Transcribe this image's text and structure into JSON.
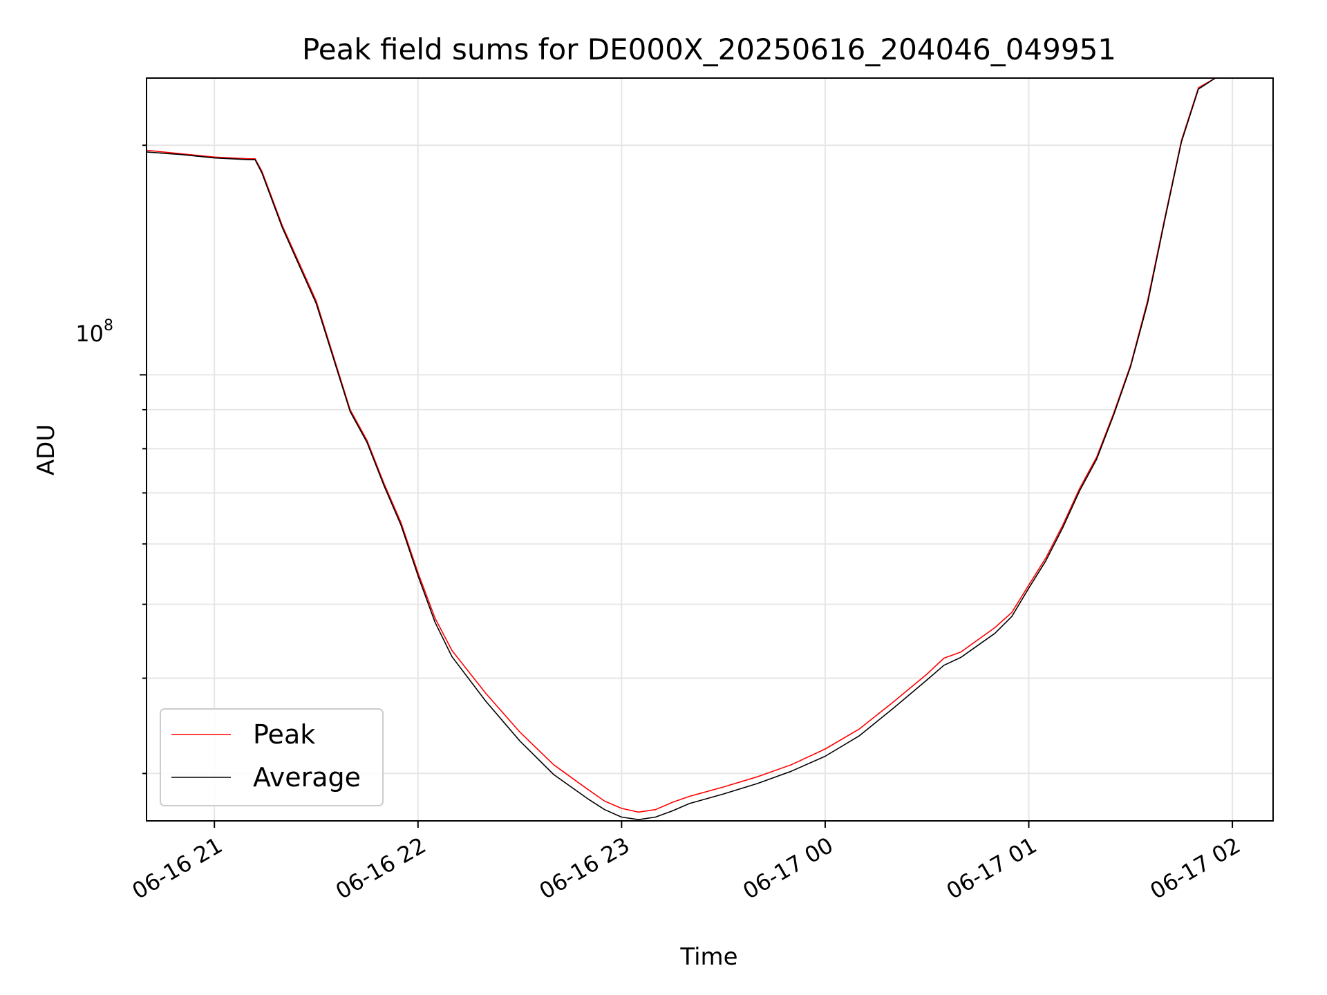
{
  "chart_data": {
    "type": "line",
    "title": "Peak field sums for DE000X_20250616_204046_049951",
    "xlabel": "Time",
    "ylabel": "ADU",
    "yscale": "log",
    "grid": true,
    "legend_position": "lower-left",
    "x_tick_labels": [
      "06-16 21",
      "06-16 22",
      "06-16 23",
      "06-17 00",
      "06-17 01",
      "06-17 02"
    ],
    "y_major_tick_label": "10^8",
    "y_major_tick_base": "10",
    "y_major_tick_exp": "8",
    "xlim": [
      "2025-06-16 20:40",
      "2025-06-17 02:12"
    ],
    "ylim": [
      26000000,
      245000000
    ],
    "series": [
      {
        "name": "Peak",
        "color": "#ff0000",
        "points": [
          [
            "2025-06-16 20:40",
            197000000
          ],
          [
            "2025-06-16 20:50",
            195000000
          ],
          [
            "2025-06-16 21:00",
            193000000
          ],
          [
            "2025-06-16 21:10",
            192000000
          ],
          [
            "2025-06-16 21:12",
            192000000
          ],
          [
            "2025-06-16 21:14",
            185000000
          ],
          [
            "2025-06-16 21:20",
            157000000
          ],
          [
            "2025-06-16 21:30",
            125000000
          ],
          [
            "2025-06-16 21:40",
            90000000
          ],
          [
            "2025-06-16 21:45",
            82000000
          ],
          [
            "2025-06-16 21:50",
            72000000
          ],
          [
            "2025-06-16 21:55",
            64000000
          ],
          [
            "2025-06-16 22:00",
            55000000
          ],
          [
            "2025-06-16 22:05",
            48000000
          ],
          [
            "2025-06-16 22:10",
            43500000
          ],
          [
            "2025-06-16 22:20",
            38200000
          ],
          [
            "2025-06-16 22:30",
            34000000
          ],
          [
            "2025-06-16 22:40",
            30800000
          ],
          [
            "2025-06-16 22:50",
            28600000
          ],
          [
            "2025-06-16 22:55",
            27600000
          ],
          [
            "2025-06-16 23:00",
            27000000
          ],
          [
            "2025-06-16 23:05",
            26700000
          ],
          [
            "2025-06-16 23:10",
            26900000
          ],
          [
            "2025-06-16 23:15",
            27500000
          ],
          [
            "2025-06-16 23:20",
            28000000
          ],
          [
            "2025-06-16 23:30",
            28800000
          ],
          [
            "2025-06-16 23:40",
            29700000
          ],
          [
            "2025-06-16 23:50",
            30800000
          ],
          [
            "2025-06-17 00:00",
            32300000
          ],
          [
            "2025-06-17 00:10",
            34300000
          ],
          [
            "2025-06-17 00:20",
            37200000
          ],
          [
            "2025-06-17 00:30",
            40500000
          ],
          [
            "2025-06-17 00:35",
            42500000
          ],
          [
            "2025-06-17 00:40",
            43300000
          ],
          [
            "2025-06-17 00:50",
            46600000
          ],
          [
            "2025-06-17 00:55",
            48800000
          ],
          [
            "2025-06-17 01:00",
            53000000
          ],
          [
            "2025-06-17 01:05",
            57500000
          ],
          [
            "2025-06-17 01:10",
            63500000
          ],
          [
            "2025-06-17 01:15",
            71000000
          ],
          [
            "2025-06-17 01:20",
            78000000
          ],
          [
            "2025-06-17 01:25",
            89000000
          ],
          [
            "2025-06-17 01:30",
            103000000
          ],
          [
            "2025-06-17 01:35",
            125000000
          ],
          [
            "2025-06-17 01:40",
            160000000
          ],
          [
            "2025-06-17 01:45",
            203000000
          ],
          [
            "2025-06-17 01:50",
            238000000
          ],
          [
            "2025-06-17 01:55",
            245000000
          ],
          [
            "2025-06-17 02:09",
            245000000
          ]
        ]
      },
      {
        "name": "Average",
        "color": "#000000",
        "points": [
          [
            "2025-06-16 20:40",
            196000000
          ],
          [
            "2025-06-16 20:50",
            194500000
          ],
          [
            "2025-06-16 21:00",
            192500000
          ],
          [
            "2025-06-16 21:10",
            191500000
          ],
          [
            "2025-06-16 21:12",
            191500000
          ],
          [
            "2025-06-16 21:14",
            184000000
          ],
          [
            "2025-06-16 21:20",
            156000000
          ],
          [
            "2025-06-16 21:30",
            124000000
          ],
          [
            "2025-06-16 21:40",
            89500000
          ],
          [
            "2025-06-16 21:45",
            81500000
          ],
          [
            "2025-06-16 21:50",
            71500000
          ],
          [
            "2025-06-16 21:55",
            63500000
          ],
          [
            "2025-06-16 22:00",
            54500000
          ],
          [
            "2025-06-16 22:05",
            47400000
          ],
          [
            "2025-06-16 22:10",
            42700000
          ],
          [
            "2025-06-16 22:20",
            37300000
          ],
          [
            "2025-06-16 22:30",
            33100000
          ],
          [
            "2025-06-16 22:40",
            29900000
          ],
          [
            "2025-06-16 22:50",
            27800000
          ],
          [
            "2025-06-16 22:55",
            26900000
          ],
          [
            "2025-06-16 23:00",
            26300000
          ],
          [
            "2025-06-16 23:05",
            26100000
          ],
          [
            "2025-06-16 23:10",
            26300000
          ],
          [
            "2025-06-16 23:15",
            26800000
          ],
          [
            "2025-06-16 23:20",
            27400000
          ],
          [
            "2025-06-16 23:30",
            28200000
          ],
          [
            "2025-06-16 23:40",
            29100000
          ],
          [
            "2025-06-16 23:50",
            30200000
          ],
          [
            "2025-06-17 00:00",
            31600000
          ],
          [
            "2025-06-17 00:10",
            33600000
          ],
          [
            "2025-06-17 00:20",
            36500000
          ],
          [
            "2025-06-17 00:30",
            39800000
          ],
          [
            "2025-06-17 00:35",
            41600000
          ],
          [
            "2025-06-17 00:40",
            42600000
          ],
          [
            "2025-06-17 00:50",
            45800000
          ],
          [
            "2025-06-17 00:55",
            48200000
          ],
          [
            "2025-06-17 01:00",
            52500000
          ],
          [
            "2025-06-17 01:05",
            57000000
          ],
          [
            "2025-06-17 01:10",
            63000000
          ],
          [
            "2025-06-17 01:15",
            70500000
          ],
          [
            "2025-06-17 01:20",
            77500000
          ],
          [
            "2025-06-17 01:25",
            88500000
          ],
          [
            "2025-06-17 01:30",
            102500000
          ],
          [
            "2025-06-17 01:35",
            124000000
          ],
          [
            "2025-06-17 01:40",
            159000000
          ],
          [
            "2025-06-17 01:45",
            202000000
          ],
          [
            "2025-06-17 01:50",
            237000000
          ],
          [
            "2025-06-17 01:55",
            245000000
          ],
          [
            "2025-06-17 02:09",
            245000000
          ]
        ]
      }
    ]
  }
}
